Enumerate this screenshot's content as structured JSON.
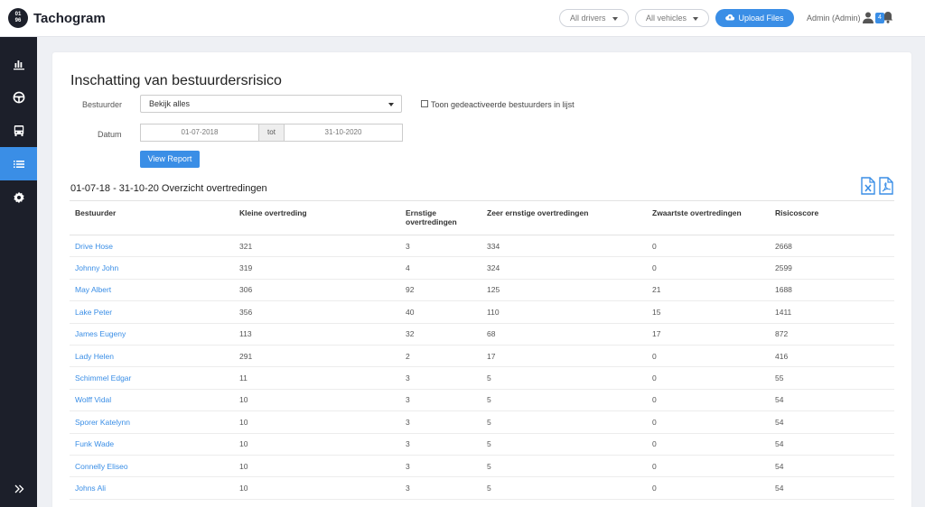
{
  "app": {
    "logo_text": "01\n96",
    "name": "Tachogram"
  },
  "header": {
    "drivers_filter": "All drivers",
    "vehicles_filter": "All vehicles",
    "upload_label": "Upload Files",
    "user_label": "Admin (Admin)",
    "notification_count": "4"
  },
  "sidebar": {
    "items": [
      {
        "icon": "bar-chart-icon",
        "active": false
      },
      {
        "icon": "steering-wheel-icon",
        "active": false
      },
      {
        "icon": "bus-icon",
        "active": false
      },
      {
        "icon": "list-icon",
        "active": true
      },
      {
        "icon": "gear-icon",
        "active": false
      }
    ],
    "expand_icon": "double-chevron-right-icon"
  },
  "page": {
    "title": "Inschatting van bestuurdersrisico",
    "driver_label": "Bestuurder",
    "driver_value": "Bekijk alles",
    "show_deactivated_label": "Toon gedeactiveerde bestuurders in lijst",
    "date_label": "Datum",
    "date_from": "01-07-2018",
    "date_sep": "tot",
    "date_to": "31-10-2020",
    "view_report_label": "View Report",
    "section_title": "01-07-18 - 31-10-20 Overzicht overtredingen",
    "export_excel_icon": "excel-file-icon",
    "export_pdf_icon": "pdf-file-icon"
  },
  "table": {
    "headers": {
      "driver": "Bestuurder",
      "minor": "Kleine overtreding",
      "serious_1": "Ernstige",
      "serious_2": "overtredingen",
      "very_serious": "Zeer ernstige overtredingen",
      "most_serious": "Zwaartste overtredingen",
      "risk": "Risicoscore"
    },
    "rows": [
      {
        "name": "Drive Hose",
        "minor": "321",
        "serious": "3",
        "very_serious": "334",
        "most_serious": "0",
        "risk": "2668"
      },
      {
        "name": "Johnny John",
        "minor": "319",
        "serious": "4",
        "very_serious": "324",
        "most_serious": "0",
        "risk": "2599"
      },
      {
        "name": "May Albert",
        "minor": "306",
        "serious": "92",
        "very_serious": "125",
        "most_serious": "21",
        "risk": "1688"
      },
      {
        "name": "Lake Peter",
        "minor": "356",
        "serious": "40",
        "very_serious": "110",
        "most_serious": "15",
        "risk": "1411"
      },
      {
        "name": "James Eugeny",
        "minor": "113",
        "serious": "32",
        "very_serious": "68",
        "most_serious": "17",
        "risk": "872"
      },
      {
        "name": "Lady Helen",
        "minor": "291",
        "serious": "2",
        "very_serious": "17",
        "most_serious": "0",
        "risk": "416"
      },
      {
        "name": "Schimmel Edgar",
        "minor": "11",
        "serious": "3",
        "very_serious": "5",
        "most_serious": "0",
        "risk": "55"
      },
      {
        "name": "Wolff Vidal",
        "minor": "10",
        "serious": "3",
        "very_serious": "5",
        "most_serious": "0",
        "risk": "54"
      },
      {
        "name": "Sporer Katelynn",
        "minor": "10",
        "serious": "3",
        "very_serious": "5",
        "most_serious": "0",
        "risk": "54"
      },
      {
        "name": "Funk Wade",
        "minor": "10",
        "serious": "3",
        "very_serious": "5",
        "most_serious": "0",
        "risk": "54"
      },
      {
        "name": "Connelly Eliseo",
        "minor": "10",
        "serious": "3",
        "very_serious": "5",
        "most_serious": "0",
        "risk": "54"
      },
      {
        "name": "Johns Ali",
        "minor": "10",
        "serious": "3",
        "very_serious": "5",
        "most_serious": "0",
        "risk": "54"
      }
    ]
  }
}
